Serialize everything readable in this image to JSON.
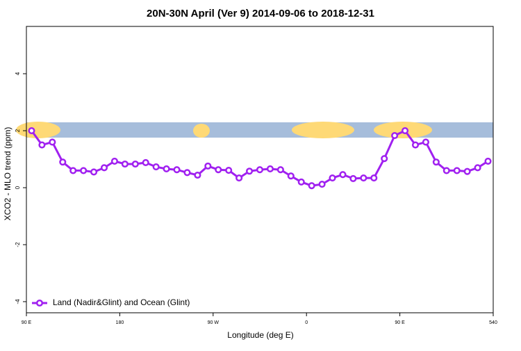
{
  "chart_data": {
    "type": "line",
    "title": "20N-30N April (Ver 9)   2014-09-06 to 2018-12-31",
    "x_label": "Longitude (deg E)",
    "y_label": "XCO2 - MLO trend (ppm)",
    "x": [
      95,
      105,
      115,
      125,
      135,
      145,
      155,
      165,
      175,
      185,
      195,
      205,
      215,
      225,
      235,
      245,
      255,
      265,
      275,
      285,
      295,
      305,
      315,
      325,
      335,
      345,
      355,
      365,
      375,
      385,
      395,
      405,
      415,
      425,
      435,
      445,
      455,
      465,
      475,
      485,
      495,
      505,
      515,
      525,
      535
    ],
    "series": [
      {
        "name": "Land (Nadir&Glint) and Ocean (Glint)",
        "color": "#a020f0",
        "values": [
          2.0,
          1.5,
          1.6,
          0.9,
          0.6,
          0.6,
          0.55,
          0.7,
          0.93,
          0.83,
          0.83,
          0.88,
          0.73,
          0.66,
          0.63,
          0.53,
          0.44,
          0.76,
          0.63,
          0.61,
          0.34,
          0.58,
          0.63,
          0.66,
          0.63,
          0.41,
          0.2,
          0.07,
          0.12,
          0.34,
          0.46,
          0.32,
          0.34,
          0.34,
          1.02,
          1.83,
          2.0,
          1.5,
          1.6,
          0.9,
          0.6,
          0.6,
          0.57,
          0.7,
          0.93
        ]
      }
    ],
    "xlim": [
      90,
      540
    ],
    "xticks": [
      {
        "value": 90,
        "label": "90 E"
      },
      180,
      {
        "value": 270,
        "label": "90 W"
      },
      {
        "value": 360,
        "label": "0"
      },
      {
        "value": 450,
        "label": "90 E"
      },
      540
    ],
    "ylim": [
      -4.39,
      5.66
    ],
    "yticks": [
      -4,
      -2,
      0,
      2,
      4
    ],
    "legend": "bottom-left"
  }
}
